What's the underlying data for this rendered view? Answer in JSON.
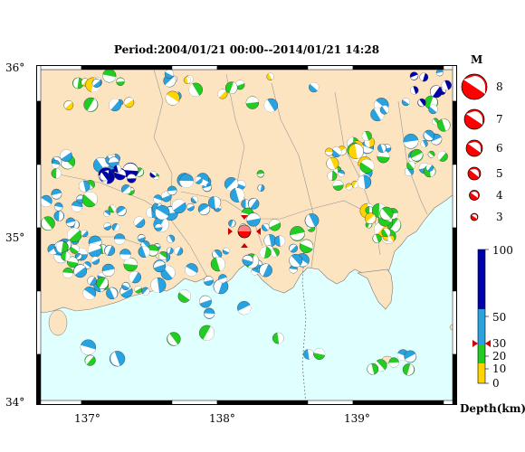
{
  "title": "Period:2004/01/21 00:00--2014/01/21 14:28",
  "lat_labels": [
    "36°",
    "35°",
    "34°"
  ],
  "lon_labels": [
    "137°",
    "138°",
    "139°"
  ],
  "magnitude_legend": {
    "title": "M",
    "levels": [
      "8",
      "7",
      "6",
      "5",
      "4",
      "3"
    ]
  },
  "depth_legend": {
    "title": "Depth(km)",
    "ticks": [
      "100",
      "50",
      "30",
      "20",
      "10",
      "0"
    ],
    "colors": {
      "shallow": "#ffd400",
      "mid": "#22cc22",
      "deep": "#29a3e0",
      "very_deep": "#0000aa"
    }
  },
  "colors": {
    "land": "#fde4c0",
    "sea": "#e0ffff",
    "mainshock": "#ff0000"
  }
}
